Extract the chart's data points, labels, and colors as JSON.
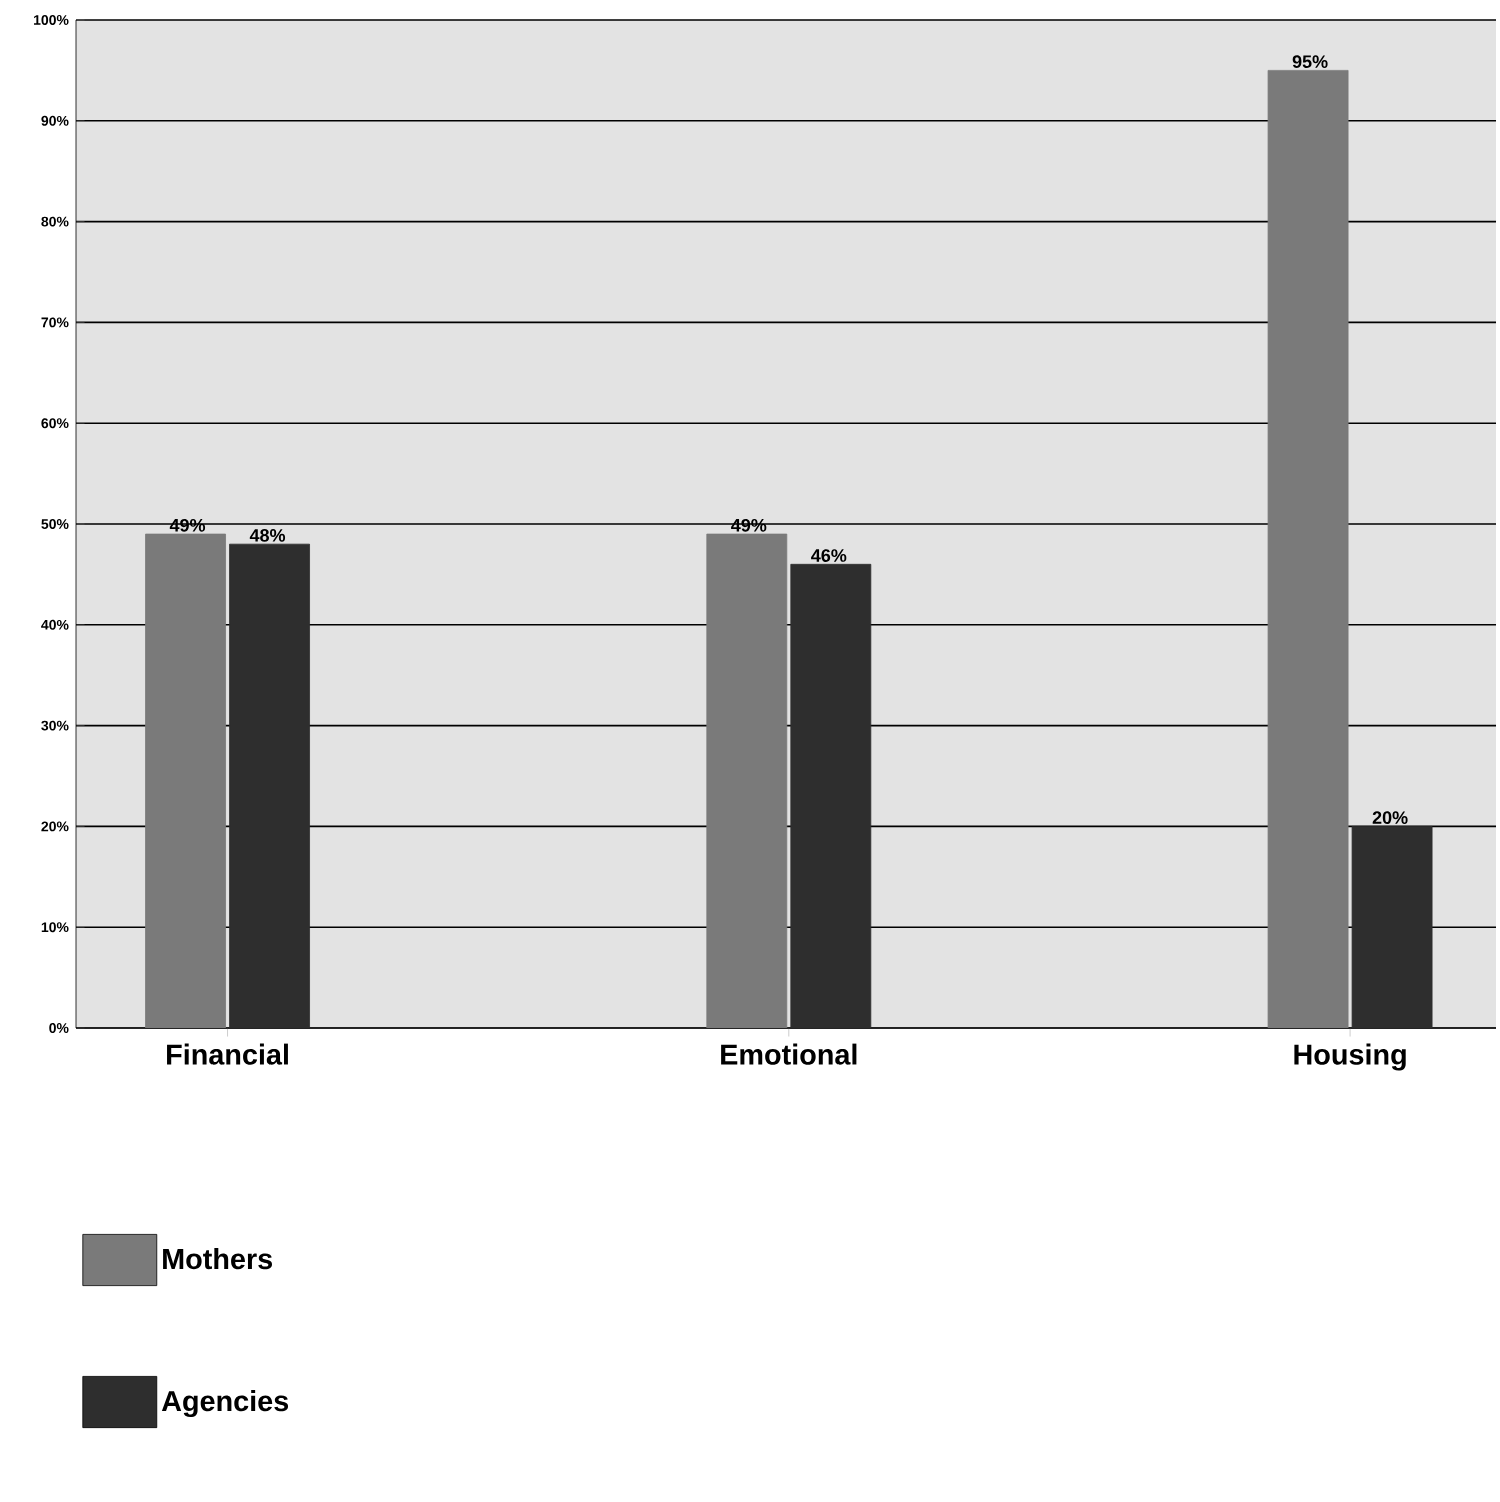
{
  "chart_data": {
    "type": "bar",
    "categories": [
      "Financial",
      "Emotional",
      "Housing"
    ],
    "series": [
      {
        "name": "Mothers",
        "color": "#7a7a7a",
        "values": [
          49,
          49,
          95
        ],
        "value_labels": [
          "49%",
          "49%",
          "95%"
        ]
      },
      {
        "name": "Agencies",
        "color": "#2e2e2e",
        "values": [
          48,
          46,
          20
        ],
        "value_labels": [
          "48%",
          "46%",
          "20%"
        ]
      }
    ],
    "ylim": [
      0,
      100
    ],
    "yticks": [
      {
        "value": 0,
        "label": "0%"
      },
      {
        "value": 10,
        "label": "10%"
      },
      {
        "value": 20,
        "label": "20%"
      },
      {
        "value": 30,
        "label": "30%"
      },
      {
        "value": 40,
        "label": "40%"
      },
      {
        "value": 50,
        "label": "50%"
      },
      {
        "value": 60,
        "label": "60%"
      },
      {
        "value": 70,
        "label": "70%"
      },
      {
        "value": 80,
        "label": "80%"
      },
      {
        "value": 90,
        "label": "90%"
      },
      {
        "value": 100,
        "label": "100%"
      }
    ],
    "grid": "y",
    "legend": "bottom"
  }
}
